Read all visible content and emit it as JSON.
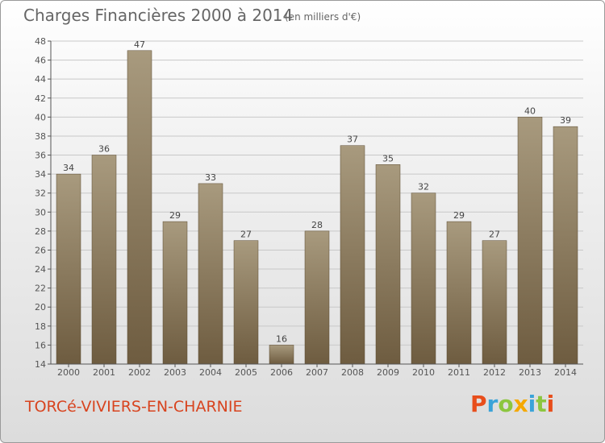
{
  "header": {
    "title": "Charges Financières 2000 à 2014",
    "subtitle": "(en milliers d'€)"
  },
  "footer": {
    "town": "TORCé-VIVIERS-EN-CHARNIE",
    "logo_letters": [
      "P",
      "r",
      "o",
      "x",
      "i",
      "t",
      "i"
    ],
    "logo_colors": [
      "#e84e1b",
      "#3aa3d8",
      "#8cc63f",
      "#f5a800",
      "#3aa3d8",
      "#8cc63f",
      "#e84e1b"
    ]
  },
  "colors": {
    "bar_light": "#a89a7e",
    "bar_dark": "#6e5c40",
    "grid": "#c8c8c8",
    "axis": "#555555",
    "town": "#d8441f"
  },
  "chart_data": {
    "type": "bar",
    "title": "Charges Financières 2000 à 2014",
    "subtitle": "(en milliers d'€)",
    "categories": [
      "2000",
      "2001",
      "2002",
      "2003",
      "2004",
      "2005",
      "2006",
      "2007",
      "2008",
      "2009",
      "2010",
      "2011",
      "2012",
      "2013",
      "2014"
    ],
    "values": [
      34,
      36,
      47,
      29,
      33,
      27,
      16,
      28,
      37,
      35,
      32,
      29,
      27,
      40,
      39
    ],
    "ylim": [
      14,
      48
    ],
    "yticks": [
      14,
      16,
      18,
      20,
      22,
      24,
      26,
      28,
      30,
      32,
      34,
      36,
      38,
      40,
      42,
      44,
      46,
      48
    ],
    "grid": true,
    "xlabel": "",
    "ylabel": ""
  }
}
